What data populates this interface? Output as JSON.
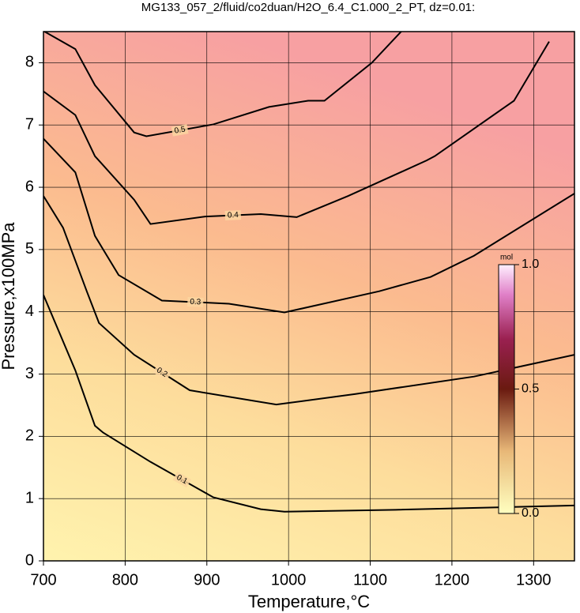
{
  "chart_data": {
    "type": "contour",
    "title": "MG133_057_2/fluid/co2duan/H2O_6.4_C1.000_2_PT, dz=0.01:",
    "xlabel": "Temperature,°C",
    "ylabel": "Pressure,x100MPa",
    "xlim": [
      700,
      1350
    ],
    "ylim": [
      0,
      8.5
    ],
    "xticks": [
      700,
      800,
      900,
      1000,
      1100,
      1200,
      1300
    ],
    "yticks": [
      0,
      1,
      2,
      3,
      4,
      5,
      6,
      7,
      8
    ],
    "grid": true,
    "series": [
      {
        "level": 0.1,
        "color": "#000000",
        "x": [
          700,
          739,
          763,
          773,
          831,
          908,
          966,
          995,
          1131,
          1350
        ],
        "y": [
          4.27,
          3.06,
          2.17,
          2.06,
          1.59,
          1.02,
          0.83,
          0.79,
          0.82,
          0.89
        ]
      },
      {
        "level": 0.2,
        "color": "#000000",
        "x": [
          700,
          724,
          753,
          768,
          811,
          879,
          985,
          1082,
          1227,
          1350
        ],
        "y": [
          5.86,
          5.35,
          4.33,
          3.82,
          3.31,
          2.74,
          2.51,
          2.68,
          2.96,
          3.31
        ]
      },
      {
        "level": 0.3,
        "color": "#000000",
        "x": [
          700,
          739,
          763,
          792,
          845,
          927,
          995,
          1111,
          1174,
          1227,
          1350
        ],
        "y": [
          6.78,
          6.24,
          5.22,
          4.59,
          4.18,
          4.13,
          3.99,
          4.33,
          4.56,
          4.9,
          5.9
        ]
      },
      {
        "level": 0.4,
        "color": "#000000",
        "x": [
          700,
          739,
          763,
          811,
          831,
          898,
          966,
          1010,
          1073,
          1169,
          1179,
          1276,
          1319
        ],
        "y": [
          7.54,
          7.16,
          6.5,
          5.8,
          5.41,
          5.53,
          5.57,
          5.52,
          5.86,
          6.43,
          6.5,
          7.39,
          8.34
        ]
      },
      {
        "level": 0.5,
        "color": "#000000",
        "x": [
          700,
          739,
          763,
          811,
          826,
          908,
          976,
          1024,
          1044,
          1102,
          1140
        ],
        "y": [
          8.51,
          8.22,
          7.64,
          6.88,
          6.82,
          7.01,
          7.29,
          7.39,
          7.39,
          8.0,
          8.53
        ]
      }
    ],
    "colorbar": {
      "label": "mol",
      "lim": [
        0,
        1
      ],
      "ticks": [
        {
          "value": 0,
          "label": "0.0"
        },
        0.5,
        {
          "value": 1,
          "label": "1.0"
        }
      ]
    }
  }
}
